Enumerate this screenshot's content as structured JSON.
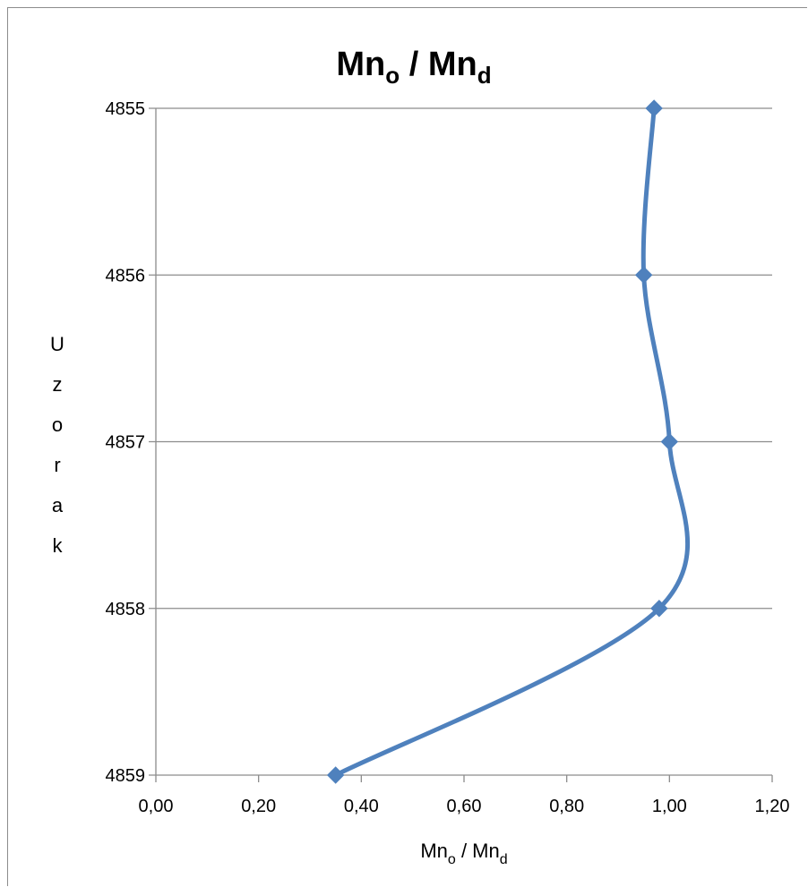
{
  "chart_data": {
    "type": "line",
    "title": {
      "main": "Mn",
      "sub1": "o",
      "sep": " / ",
      "main2": "Mn",
      "sub2": "d"
    },
    "xlabel": {
      "main": "Mn",
      "sub1": "o",
      "sep": " / ",
      "main2": "Mn",
      "sub2": "d"
    },
    "ylabel": "Uzorak",
    "xlim": [
      0,
      1.2
    ],
    "x_ticks": [
      "0,00",
      "0,20",
      "0,40",
      "0,60",
      "0,80",
      "1,00",
      "1,20"
    ],
    "y_categories": [
      "4855",
      "4856",
      "4857",
      "4858",
      "4859"
    ],
    "y_reversed": true,
    "grid": "horizontal",
    "legend": "none",
    "smoothed": true,
    "series": [
      {
        "color": "#4f81bd",
        "marker": "diamond",
        "points": [
          {
            "y": "4855",
            "x": 0.97
          },
          {
            "y": "4856",
            "x": 0.95
          },
          {
            "y": "4857",
            "x": 1.0
          },
          {
            "y": "4858",
            "x": 0.98
          },
          {
            "y": "4859",
            "x": 0.35
          }
        ]
      }
    ]
  }
}
